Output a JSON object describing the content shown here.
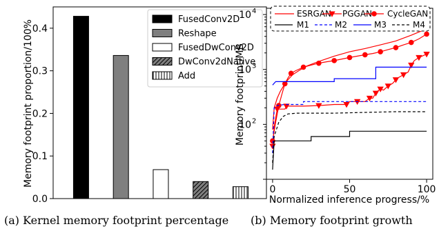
{
  "captions": {
    "left": "(a) Kernel memory footprint percentage",
    "right": "(b) Memory footprint growth"
  },
  "chart_data": [
    {
      "type": "bar",
      "title": "",
      "xlabel": "",
      "ylabel": "Memory footprint proportion/100%",
      "ylim": [
        0,
        0.45
      ],
      "yticks": [
        "0.0",
        "0.1",
        "0.2",
        "0.3",
        "0.4"
      ],
      "legend_position": "top-right",
      "grid": false,
      "series": [
        {
          "name": "FusedConv2D",
          "value": 0.428,
          "hatch": "solid-black"
        },
        {
          "name": "Reshape",
          "value": 0.336,
          "hatch": "solid-gray"
        },
        {
          "name": "FusedDwConv2D",
          "value": 0.068,
          "hatch": "none"
        },
        {
          "name": "DwConv2dNative",
          "value": 0.04,
          "hatch": "diagonal"
        },
        {
          "name": "Add",
          "value": 0.028,
          "hatch": "vertical"
        }
      ],
      "colors": {
        "FusedConv2D": "#000000",
        "Reshape": "#7f7f7f",
        "FusedDwConv2D": "#ffffff",
        "DwConv2dNative": "#7f7f7f",
        "Add": "#ffffff"
      }
    },
    {
      "type": "line",
      "title": "",
      "xlabel": "Normalized inference progress/%",
      "ylabel": "Memory footprint/MB",
      "yscale": "log",
      "xlim": [
        -4,
        104
      ],
      "ylim": [
        10,
        13000
      ],
      "xticks": [
        "0",
        "50",
        "100"
      ],
      "yticks": [
        {
          "base": "10",
          "exp": "2"
        },
        {
          "base": "10",
          "exp": "3"
        },
        {
          "base": "10",
          "exp": "4"
        }
      ],
      "legend_position": "top",
      "grid": false,
      "series": [
        {
          "name": "ESRGAN",
          "color": "#ff0000",
          "dash": "solid",
          "marker": "none",
          "x": [
            0,
            1,
            3,
            5,
            8,
            10,
            13,
            17,
            22,
            30,
            40,
            50,
            60,
            70,
            80,
            90,
            100
          ],
          "y": [
            80,
            200,
            300,
            400,
            550,
            650,
            800,
            950,
            1150,
            1400,
            1750,
            2100,
            2400,
            2800,
            3300,
            4200,
            5500
          ]
        },
        {
          "name": "PGGAN",
          "color": "#ff0000",
          "dash": "solid",
          "marker": "triangle-down",
          "x": [
            0,
            1,
            3,
            8,
            9,
            20,
            30,
            40,
            48,
            50,
            55,
            60,
            63,
            65,
            67,
            68,
            70,
            72,
            75,
            78,
            80,
            82,
            85,
            88,
            90,
            92,
            95,
            98,
            100
          ],
          "y": [
            40,
            90,
            190,
            190,
            215,
            215,
            220,
            230,
            230,
            260,
            260,
            260,
            300,
            300,
            370,
            400,
            440,
            420,
            500,
            560,
            650,
            720,
            800,
            900,
            1200,
            1450,
            1650,
            1800,
            1900
          ]
        },
        {
          "name": "CycleGAN",
          "color": "#ff0000",
          "dash": "solid",
          "marker": "circle",
          "x": [
            0,
            2,
            4,
            6,
            8,
            10,
            12,
            15,
            20,
            25,
            30,
            35,
            40,
            45,
            50,
            55,
            60,
            65,
            70,
            75,
            80,
            85,
            90,
            95,
            100
          ],
          "y": [
            50,
            110,
            220,
            350,
            550,
            700,
            850,
            950,
            1100,
            1200,
            1300,
            1380,
            1450,
            1550,
            1650,
            1750,
            1850,
            1950,
            2100,
            2300,
            2500,
            2800,
            3100,
            3600,
            4400
          ]
        },
        {
          "name": "M1",
          "color": "#000000",
          "dash": "solid",
          "marker": "none",
          "x": [
            0,
            1,
            2,
            25,
            25,
            50,
            50,
            100
          ],
          "y": [
            15,
            50,
            50,
            50,
            60,
            60,
            75,
            75
          ]
        },
        {
          "name": "M2",
          "color": "#0000ff",
          "dash": "dashed",
          "marker": "none",
          "x": [
            0,
            1,
            3,
            5,
            8,
            20,
            20,
            100
          ],
          "y": [
            30,
            200,
            220,
            225,
            230,
            230,
            260,
            260
          ]
        },
        {
          "name": "M3",
          "color": "#0000ff",
          "dash": "solid",
          "marker": "none",
          "x": [
            0,
            0,
            2,
            40,
            40,
            67,
            67,
            100
          ],
          "y": [
            520,
            520,
            600,
            600,
            680,
            680,
            1100,
            1100
          ]
        },
        {
          "name": "M4",
          "color": "#000000",
          "dash": "dashed",
          "marker": "none",
          "x": [
            0,
            1,
            4,
            7,
            10,
            16,
            20,
            40,
            60,
            80,
            100
          ],
          "y": [
            20,
            60,
            110,
            140,
            155,
            160,
            160,
            160,
            165,
            170,
            170
          ]
        }
      ]
    }
  ]
}
